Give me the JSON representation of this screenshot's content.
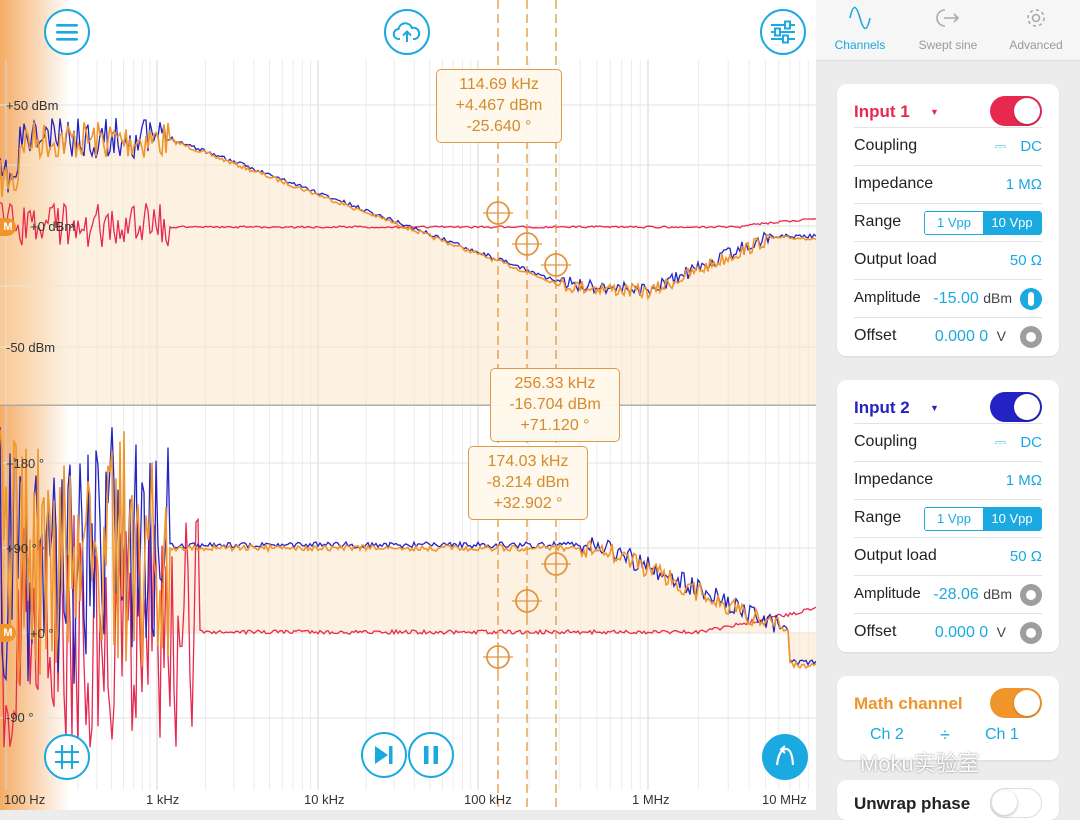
{
  "toolbar": {
    "menu_icon": "menu-icon",
    "upload_icon": "cloud-upload-icon",
    "settings_icon": "sliders-icon"
  },
  "plot": {
    "magnitude_labels": [
      "+50 dBm",
      "+0 dBm",
      "-50 dBm"
    ],
    "phase_labels": [
      "+180 °",
      "+90 °",
      "+0 °",
      "-90 °"
    ],
    "x_labels": [
      "100 Hz",
      "1 kHz",
      "10 kHz",
      "100 kHz",
      "1 MHz",
      "10 MHz"
    ],
    "marker_badge": "M",
    "cursors": [
      {
        "freq": "114.69 kHz",
        "mag": "+4.467 dBm",
        "phase": "-25.640 °"
      },
      {
        "freq": "256.33 kHz",
        "mag": "-16.704 dBm",
        "phase": "+71.120 °"
      },
      {
        "freq": "174.03 kHz",
        "mag": "-8.214 dBm",
        "phase": "+32.902 °"
      }
    ],
    "colors": {
      "ch1": "#e8294f",
      "ch2": "#2323c4",
      "math": "#f0952b",
      "accent": "#1aa9e0"
    }
  },
  "controls": {
    "grid_icon": "grid-icon",
    "step_icon": "step-forward-icon",
    "pause_icon": "pause-icon",
    "autoscale_icon": "autoscale-icon"
  },
  "tabs": [
    {
      "label": "Channels",
      "icon": "sine-wave-icon",
      "active": true
    },
    {
      "label": "Swept sine",
      "icon": "swept-sine-icon",
      "active": false
    },
    {
      "label": "Advanced",
      "icon": "gear-icon",
      "active": false
    }
  ],
  "input1": {
    "title": "Input 1",
    "enabled": true,
    "coupling_label": "Coupling",
    "coupling_value": "DC",
    "impedance_label": "Impedance",
    "impedance_value": "1 MΩ",
    "range_label": "Range",
    "range_options": [
      "1 Vpp",
      "10 Vpp"
    ],
    "range_selected": "10 Vpp",
    "output_load_label": "Output load",
    "output_load_value": "50 Ω",
    "amplitude_label": "Amplitude",
    "amplitude_value": "-15.00",
    "amplitude_unit": "dBm",
    "offset_label": "Offset",
    "offset_value": "0.000 0",
    "offset_unit": "V",
    "color": "#e8294f"
  },
  "input2": {
    "title": "Input 2",
    "enabled": true,
    "coupling_label": "Coupling",
    "coupling_value": "DC",
    "impedance_label": "Impedance",
    "impedance_value": "1 MΩ",
    "range_label": "Range",
    "range_options": [
      "1 Vpp",
      "10 Vpp"
    ],
    "range_selected": "10 Vpp",
    "output_load_label": "Output load",
    "output_load_value": "50 Ω",
    "amplitude_label": "Amplitude",
    "amplitude_value": "-28.06",
    "amplitude_unit": "dBm",
    "offset_label": "Offset",
    "offset_value": "0.000 0",
    "offset_unit": "V",
    "color": "#2323c4"
  },
  "math": {
    "title": "Math channel",
    "enabled": true,
    "operand_a": "Ch 2",
    "operator": "÷",
    "operand_b": "Ch 1",
    "color": "#f0952b"
  },
  "unwrap": {
    "title": "Unwrap phase",
    "enabled": false
  },
  "watermark": "Moku实验室"
}
